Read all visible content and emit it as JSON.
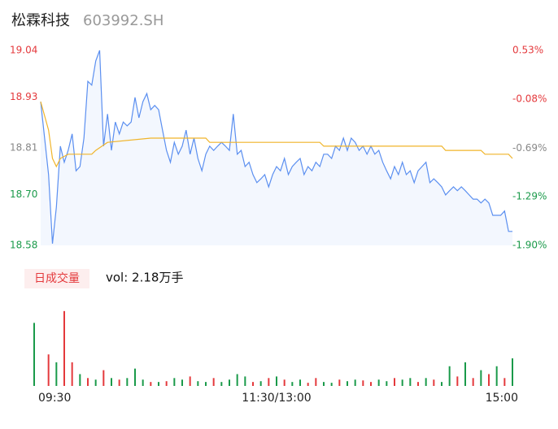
{
  "chart_data": {
    "type": "intraday",
    "title": "松霖科技",
    "subtitle": "603992.SH",
    "xlim": [
      0,
      240
    ],
    "xticks": [
      {
        "value": 0,
        "label": "09:30"
      },
      {
        "value": 120,
        "label": "11:30/13:00"
      },
      {
        "value": 240,
        "label": "15:00"
      }
    ],
    "ylim": [
      18.58,
      19.04
    ],
    "yticks": [
      {
        "value": 19.04,
        "label": "19.04"
      },
      {
        "value": 18.93,
        "label": "18.93"
      },
      {
        "value": 18.81,
        "label": "18.81"
      },
      {
        "value": 18.7,
        "label": "18.70"
      },
      {
        "value": 18.58,
        "label": "18.58"
      }
    ],
    "y2lim": [
      -1.9,
      0.53
    ],
    "y2ticks": [
      {
        "value": 0.53,
        "label": "0.53%"
      },
      {
        "value": -0.08,
        "label": "-0.08%"
      },
      {
        "value": -0.69,
        "label": "-0.69%"
      },
      {
        "value": -1.29,
        "label": "-1.29%"
      },
      {
        "value": -1.9,
        "label": "-1.90%"
      }
    ],
    "tick_colors": [
      "#e4393c",
      "#e4393c",
      "#888888",
      "#1a9a4a",
      "#1a9a4a"
    ],
    "series": [
      {
        "name": "price",
        "color": "#5b8ff0",
        "x": [
          0,
          4,
          6,
          8,
          10,
          12,
          14,
          16,
          18,
          20,
          22,
          24,
          26,
          28,
          30,
          32,
          34,
          36,
          38,
          40,
          42,
          44,
          46,
          48,
          50,
          52,
          54,
          56,
          58,
          60,
          62,
          64,
          66,
          68,
          70,
          72,
          74,
          76,
          78,
          80,
          82,
          84,
          86,
          88,
          90,
          92,
          94,
          96,
          98,
          100,
          102,
          104,
          106,
          108,
          110,
          112,
          114,
          116,
          118,
          120,
          122,
          124,
          126,
          128,
          130,
          132,
          134,
          136,
          138,
          140,
          142,
          144,
          146,
          148,
          150,
          152,
          154,
          156,
          158,
          160,
          162,
          164,
          166,
          168,
          170,
          172,
          174,
          176,
          178,
          180,
          182,
          184,
          186,
          188,
          190,
          192,
          194,
          196,
          198,
          200,
          202,
          204,
          206,
          208,
          210,
          212,
          214,
          216,
          218,
          220,
          222,
          224,
          226,
          228,
          230,
          232,
          234,
          236,
          238,
          240
        ],
        "values": [
          18.919,
          18.747,
          18.584,
          18.67,
          18.814,
          18.776,
          18.804,
          18.843,
          18.756,
          18.766,
          18.833,
          18.967,
          18.958,
          19.015,
          19.04,
          18.814,
          18.89,
          18.804,
          18.871,
          18.843,
          18.871,
          18.862,
          18.871,
          18.929,
          18.881,
          18.919,
          18.938,
          18.9,
          18.91,
          18.9,
          18.852,
          18.804,
          18.776,
          18.823,
          18.795,
          18.814,
          18.852,
          18.795,
          18.833,
          18.785,
          18.756,
          18.795,
          18.814,
          18.804,
          18.814,
          18.823,
          18.814,
          18.804,
          18.89,
          18.795,
          18.804,
          18.766,
          18.776,
          18.747,
          18.728,
          18.737,
          18.747,
          18.718,
          18.747,
          18.766,
          18.756,
          18.785,
          18.747,
          18.766,
          18.776,
          18.785,
          18.747,
          18.766,
          18.756,
          18.776,
          18.766,
          18.795,
          18.795,
          18.785,
          18.814,
          18.804,
          18.833,
          18.804,
          18.833,
          18.823,
          18.804,
          18.814,
          18.795,
          18.814,
          18.795,
          18.804,
          18.776,
          18.756,
          18.737,
          18.766,
          18.747,
          18.776,
          18.747,
          18.756,
          18.728,
          18.756,
          18.766,
          18.776,
          18.728,
          18.737,
          18.728,
          18.718,
          18.699,
          18.709,
          18.718,
          18.709,
          18.718,
          18.709,
          18.699,
          18.689,
          18.689,
          18.68,
          18.689,
          18.68,
          18.651,
          18.651,
          18.651,
          18.661,
          18.613,
          18.613
        ]
      },
      {
        "name": "average",
        "color": "#f0b429",
        "x": [
          0,
          4,
          6,
          8,
          10,
          14,
          26,
          28,
          34,
          56,
          84,
          86,
          142,
          144,
          204,
          206,
          224,
          226,
          238,
          240
        ],
        "values": [
          18.919,
          18.852,
          18.785,
          18.766,
          18.785,
          18.795,
          18.795,
          18.804,
          18.823,
          18.833,
          18.833,
          18.823,
          18.823,
          18.814,
          18.814,
          18.804,
          18.804,
          18.795,
          18.795,
          18.785
        ]
      }
    ],
    "volume": {
      "label": "日成交量",
      "summary": "vol: 2.18万手",
      "ylim": [
        0,
        100
      ],
      "x": [
        0,
        4,
        8,
        12,
        16,
        20,
        24,
        28,
        32,
        36,
        40,
        44,
        48,
        52,
        56,
        60,
        64,
        68,
        72,
        76,
        80,
        84,
        88,
        92,
        96,
        100,
        104,
        108,
        112,
        116,
        120,
        124,
        128,
        132,
        136,
        140,
        144,
        148,
        152,
        156,
        160,
        164,
        168,
        172,
        176,
        180,
        184,
        188,
        192,
        196,
        200,
        204,
        208,
        212,
        216,
        220,
        224,
        228,
        232,
        236,
        240
      ],
      "values": [
        80,
        40,
        30,
        95,
        30,
        15,
        10,
        8,
        20,
        10,
        8,
        10,
        22,
        8,
        5,
        5,
        6,
        10,
        8,
        12,
        6,
        5,
        10,
        5,
        8,
        15,
        12,
        5,
        6,
        10,
        12,
        8,
        5,
        8,
        4,
        10,
        5,
        4,
        8,
        6,
        8,
        7,
        5,
        8,
        6,
        10,
        8,
        10,
        5,
        10,
        8,
        5,
        25,
        12,
        30,
        10,
        20,
        15,
        25,
        10,
        35
      ],
      "colors": [
        "#1a9a4a",
        "#e4393c",
        "#1a9a4a",
        "#e4393c",
        "#e4393c",
        "#1a9a4a",
        "#e4393c",
        "#1a9a4a",
        "#e4393c",
        "#1a9a4a",
        "#e4393c",
        "#1a9a4a",
        "#1a9a4a",
        "#1a9a4a",
        "#e4393c",
        "#1a9a4a",
        "#e4393c",
        "#1a9a4a",
        "#1a9a4a",
        "#e4393c",
        "#1a9a4a",
        "#1a9a4a",
        "#e4393c",
        "#1a9a4a",
        "#1a9a4a",
        "#1a9a4a",
        "#1a9a4a",
        "#e4393c",
        "#1a9a4a",
        "#e4393c",
        "#1a9a4a",
        "#e4393c",
        "#1a9a4a",
        "#1a9a4a",
        "#e4393c",
        "#e4393c",
        "#1a9a4a",
        "#1a9a4a",
        "#e4393c",
        "#1a9a4a",
        "#1a9a4a",
        "#e4393c",
        "#e4393c",
        "#1a9a4a",
        "#1a9a4a",
        "#e4393c",
        "#1a9a4a",
        "#1a9a4a",
        "#e4393c",
        "#1a9a4a",
        "#e4393c",
        "#1a9a4a",
        "#1a9a4a",
        "#e4393c",
        "#1a9a4a",
        "#e4393c",
        "#1a9a4a",
        "#e4393c",
        "#1a9a4a",
        "#e4393c",
        "#1a9a4a"
      ]
    }
  }
}
